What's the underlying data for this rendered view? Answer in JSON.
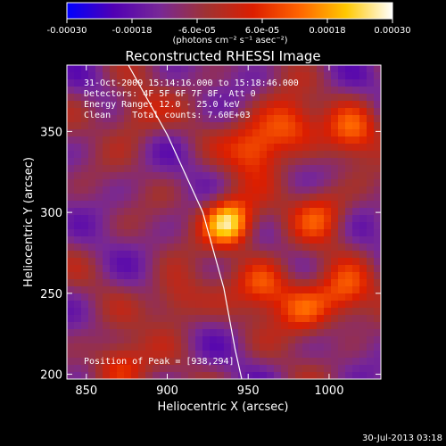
{
  "chart_data": {
    "type": "heatmap",
    "title": "Reconstructed RHESSI Image",
    "xlabel": "Heliocentric X (arcsec)",
    "ylabel": "Heliocentric Y (arcsec)",
    "xlim": [
      838,
      1032
    ],
    "ylim": [
      197,
      391
    ],
    "x_ticks": [
      "850",
      "900",
      "950",
      "1000"
    ],
    "y_ticks": [
      "200",
      "250",
      "300",
      "350"
    ],
    "x_tick_values": [
      850,
      900,
      950,
      1000
    ],
    "y_tick_values": [
      200,
      250,
      300,
      350
    ],
    "colorbar": {
      "min": -0.0003,
      "max": 0.0003,
      "ticks": [
        "-0.00030",
        "-0.00018",
        "-6.0e-05",
        "6.0e-05",
        "0.00018",
        "0.00030"
      ],
      "tick_values": [
        -0.0003,
        -0.00018,
        -6e-05,
        6e-05,
        0.00018,
        0.0003
      ],
      "unit_label": "(photons cm⁻² s⁻¹ asec⁻²)",
      "colors": [
        "#0000ff",
        "#5000b4",
        "#782896",
        "#a03232",
        "#dc1e00",
        "#ff6400",
        "#ffc800",
        "#ffffff"
      ]
    },
    "annotations": {
      "time_range": "31-Oct-2009 15:14:16.000 to 15:18:46.000",
      "detectors": "Detectors: 4F 5F 6F 7F 8F, Att 0",
      "energy_range": "Energy Range: 12.0 - 25.0 keV",
      "clean": "Clean    Total counts: 7.60E+03",
      "peak": "Position of Peak = [938,294]"
    },
    "peak_position": [
      938,
      294
    ],
    "peak_value": 0.0003,
    "limb": {
      "description": "solar limb",
      "points": [
        [
          876,
          391
        ],
        [
          900,
          348
        ],
        [
          922,
          300
        ],
        [
          935,
          253
        ],
        [
          942,
          215
        ],
        [
          946,
          197
        ]
      ]
    },
    "sources": [
      {
        "x": 938,
        "y": 294,
        "intensity": 0.0003
      },
      {
        "x": 955,
        "y": 340,
        "intensity": 0.00014
      },
      {
        "x": 975,
        "y": 355,
        "intensity": 0.00012
      },
      {
        "x": 995,
        "y": 300,
        "intensity": 0.0001
      },
      {
        "x": 960,
        "y": 255,
        "intensity": 0.00012
      },
      {
        "x": 985,
        "y": 240,
        "intensity": 0.00011
      },
      {
        "x": 1010,
        "y": 250,
        "intensity": 0.0001
      },
      {
        "x": 870,
        "y": 205,
        "intensity": 0.0001
      },
      {
        "x": 1015,
        "y": 350,
        "intensity": 0.00011
      },
      {
        "x": 905,
        "y": 245,
        "intensity": 8e-05
      },
      {
        "x": 880,
        "y": 360,
        "intensity": 6e-05
      }
    ]
  },
  "footer": {
    "timestamp": "30-Jul-2013 03:18"
  }
}
